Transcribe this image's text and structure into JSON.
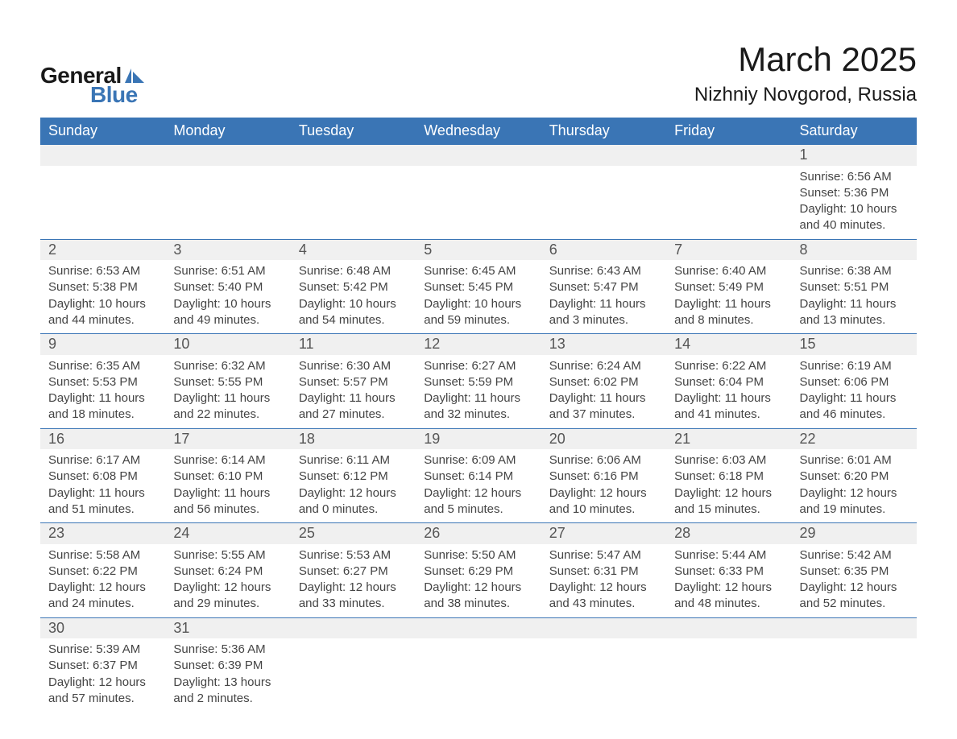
{
  "logo": {
    "text1": "General",
    "text2": "Blue",
    "accent_color": "#3a75b5"
  },
  "title": "March 2025",
  "location": "Nizhniy Novgorod, Russia",
  "colors": {
    "header_bg": "#3a75b5",
    "header_text": "#ffffff",
    "daynum_bg": "#f0f0f0",
    "text": "#444444",
    "border": "#3a75b5",
    "page_bg": "#ffffff"
  },
  "typography": {
    "title_fontsize": 42,
    "location_fontsize": 24,
    "header_fontsize": 18,
    "daynum_fontsize": 18,
    "detail_fontsize": 15
  },
  "layout": {
    "columns": 7,
    "first_day_column": 6
  },
  "weekdays": [
    "Sunday",
    "Monday",
    "Tuesday",
    "Wednesday",
    "Thursday",
    "Friday",
    "Saturday"
  ],
  "days": [
    {
      "n": 1,
      "sunrise": "6:56 AM",
      "sunset": "5:36 PM",
      "daylight": "10 hours and 40 minutes."
    },
    {
      "n": 2,
      "sunrise": "6:53 AM",
      "sunset": "5:38 PM",
      "daylight": "10 hours and 44 minutes."
    },
    {
      "n": 3,
      "sunrise": "6:51 AM",
      "sunset": "5:40 PM",
      "daylight": "10 hours and 49 minutes."
    },
    {
      "n": 4,
      "sunrise": "6:48 AM",
      "sunset": "5:42 PM",
      "daylight": "10 hours and 54 minutes."
    },
    {
      "n": 5,
      "sunrise": "6:45 AM",
      "sunset": "5:45 PM",
      "daylight": "10 hours and 59 minutes."
    },
    {
      "n": 6,
      "sunrise": "6:43 AM",
      "sunset": "5:47 PM",
      "daylight": "11 hours and 3 minutes."
    },
    {
      "n": 7,
      "sunrise": "6:40 AM",
      "sunset": "5:49 PM",
      "daylight": "11 hours and 8 minutes."
    },
    {
      "n": 8,
      "sunrise": "6:38 AM",
      "sunset": "5:51 PM",
      "daylight": "11 hours and 13 minutes."
    },
    {
      "n": 9,
      "sunrise": "6:35 AM",
      "sunset": "5:53 PM",
      "daylight": "11 hours and 18 minutes."
    },
    {
      "n": 10,
      "sunrise": "6:32 AM",
      "sunset": "5:55 PM",
      "daylight": "11 hours and 22 minutes."
    },
    {
      "n": 11,
      "sunrise": "6:30 AM",
      "sunset": "5:57 PM",
      "daylight": "11 hours and 27 minutes."
    },
    {
      "n": 12,
      "sunrise": "6:27 AM",
      "sunset": "5:59 PM",
      "daylight": "11 hours and 32 minutes."
    },
    {
      "n": 13,
      "sunrise": "6:24 AM",
      "sunset": "6:02 PM",
      "daylight": "11 hours and 37 minutes."
    },
    {
      "n": 14,
      "sunrise": "6:22 AM",
      "sunset": "6:04 PM",
      "daylight": "11 hours and 41 minutes."
    },
    {
      "n": 15,
      "sunrise": "6:19 AM",
      "sunset": "6:06 PM",
      "daylight": "11 hours and 46 minutes."
    },
    {
      "n": 16,
      "sunrise": "6:17 AM",
      "sunset": "6:08 PM",
      "daylight": "11 hours and 51 minutes."
    },
    {
      "n": 17,
      "sunrise": "6:14 AM",
      "sunset": "6:10 PM",
      "daylight": "11 hours and 56 minutes."
    },
    {
      "n": 18,
      "sunrise": "6:11 AM",
      "sunset": "6:12 PM",
      "daylight": "12 hours and 0 minutes."
    },
    {
      "n": 19,
      "sunrise": "6:09 AM",
      "sunset": "6:14 PM",
      "daylight": "12 hours and 5 minutes."
    },
    {
      "n": 20,
      "sunrise": "6:06 AM",
      "sunset": "6:16 PM",
      "daylight": "12 hours and 10 minutes."
    },
    {
      "n": 21,
      "sunrise": "6:03 AM",
      "sunset": "6:18 PM",
      "daylight": "12 hours and 15 minutes."
    },
    {
      "n": 22,
      "sunrise": "6:01 AM",
      "sunset": "6:20 PM",
      "daylight": "12 hours and 19 minutes."
    },
    {
      "n": 23,
      "sunrise": "5:58 AM",
      "sunset": "6:22 PM",
      "daylight": "12 hours and 24 minutes."
    },
    {
      "n": 24,
      "sunrise": "5:55 AM",
      "sunset": "6:24 PM",
      "daylight": "12 hours and 29 minutes."
    },
    {
      "n": 25,
      "sunrise": "5:53 AM",
      "sunset": "6:27 PM",
      "daylight": "12 hours and 33 minutes."
    },
    {
      "n": 26,
      "sunrise": "5:50 AM",
      "sunset": "6:29 PM",
      "daylight": "12 hours and 38 minutes."
    },
    {
      "n": 27,
      "sunrise": "5:47 AM",
      "sunset": "6:31 PM",
      "daylight": "12 hours and 43 minutes."
    },
    {
      "n": 28,
      "sunrise": "5:44 AM",
      "sunset": "6:33 PM",
      "daylight": "12 hours and 48 minutes."
    },
    {
      "n": 29,
      "sunrise": "5:42 AM",
      "sunset": "6:35 PM",
      "daylight": "12 hours and 52 minutes."
    },
    {
      "n": 30,
      "sunrise": "5:39 AM",
      "sunset": "6:37 PM",
      "daylight": "12 hours and 57 minutes."
    },
    {
      "n": 31,
      "sunrise": "5:36 AM",
      "sunset": "6:39 PM",
      "daylight": "13 hours and 2 minutes."
    }
  ],
  "labels": {
    "sunrise": "Sunrise:",
    "sunset": "Sunset:",
    "daylight": "Daylight:"
  }
}
